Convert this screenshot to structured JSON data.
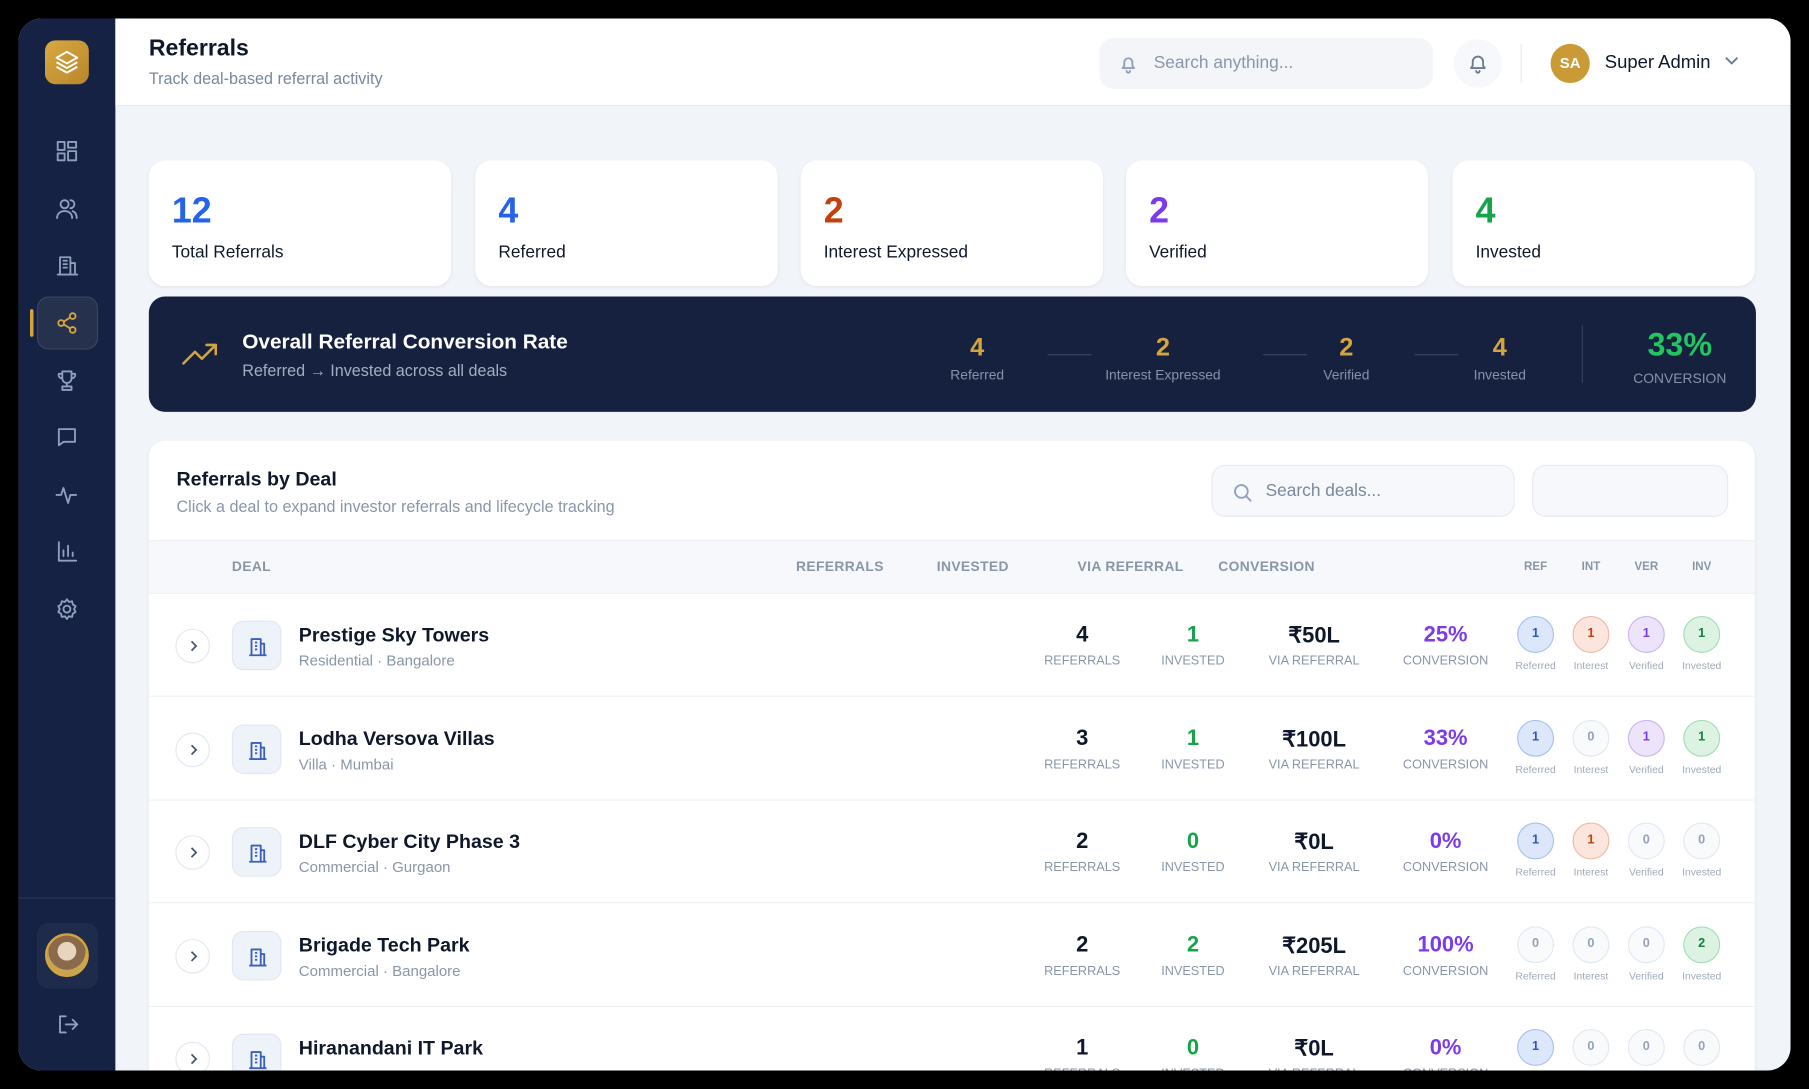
{
  "header": {
    "title": "Referrals",
    "subtitle": "Track deal-based referral activity",
    "search_placeholder": "Search anything...",
    "user_initials": "SA",
    "user_name": "Super Admin"
  },
  "stats": [
    {
      "value": 12,
      "label": "Total Referrals",
      "color": "#2563eb"
    },
    {
      "value": 4,
      "label": "Referred",
      "color": "#2563eb"
    },
    {
      "value": 2,
      "label": "Interest Expressed",
      "color": "#c2410c"
    },
    {
      "value": 2,
      "label": "Verified",
      "color": "#7c3aed"
    },
    {
      "value": 4,
      "label": "Invested",
      "color": "#16a34a"
    }
  ],
  "conversion": {
    "title": "Overall Referral Conversion Rate",
    "subtitle": "Referred → Invested across all deals",
    "steps": [
      {
        "value": 4,
        "label": "Referred"
      },
      {
        "value": 2,
        "label": "Interest Expressed"
      },
      {
        "value": 2,
        "label": "Verified"
      },
      {
        "value": 4,
        "label": "Invested"
      }
    ],
    "rate": "33%",
    "rate_label": "CONVERSION"
  },
  "deals": {
    "title": "Referrals by Deal",
    "subtitle": "Click a deal to expand investor referrals and lifecycle tracking",
    "search_placeholder": "Search deals...",
    "columns": [
      "DEAL",
      "REFERRALS",
      "INVESTED",
      "VIA REFERRAL",
      "CONVERSION"
    ],
    "stage_columns": [
      "REF",
      "INT",
      "VER",
      "INV"
    ],
    "metric_labels": {
      "referrals": "REFERRALS",
      "invested": "INVESTED",
      "via_referral": "VIA REFERRAL",
      "conversion": "CONVERSION"
    },
    "stage_labels": [
      "Referred",
      "Interest",
      "Verified",
      "Invested"
    ],
    "rows": [
      {
        "name": "Prestige Sky Towers",
        "meta": "Residential · Bangalore",
        "referrals": 4,
        "invested": 1,
        "via_referral": "₹50L",
        "conversion": "25%",
        "stages": [
          1,
          1,
          1,
          1
        ]
      },
      {
        "name": "Lodha Versova Villas",
        "meta": "Villa · Mumbai",
        "referrals": 3,
        "invested": 1,
        "via_referral": "₹100L",
        "conversion": "33%",
        "stages": [
          1,
          0,
          1,
          1
        ]
      },
      {
        "name": "DLF Cyber City Phase 3",
        "meta": "Commercial · Gurgaon",
        "referrals": 2,
        "invested": 0,
        "via_referral": "₹0L",
        "conversion": "0%",
        "stages": [
          1,
          1,
          0,
          0
        ]
      },
      {
        "name": "Brigade Tech Park",
        "meta": "Commercial · Bangalore",
        "referrals": 2,
        "invested": 2,
        "via_referral": "₹205L",
        "conversion": "100%",
        "stages": [
          0,
          0,
          0,
          2
        ]
      },
      {
        "name": "Hiranandani IT Park",
        "referrals": 1,
        "invested": 0,
        "via_referral": "₹0L",
        "conversion": "0%",
        "stages": [
          1,
          0,
          0,
          0
        ]
      }
    ]
  }
}
